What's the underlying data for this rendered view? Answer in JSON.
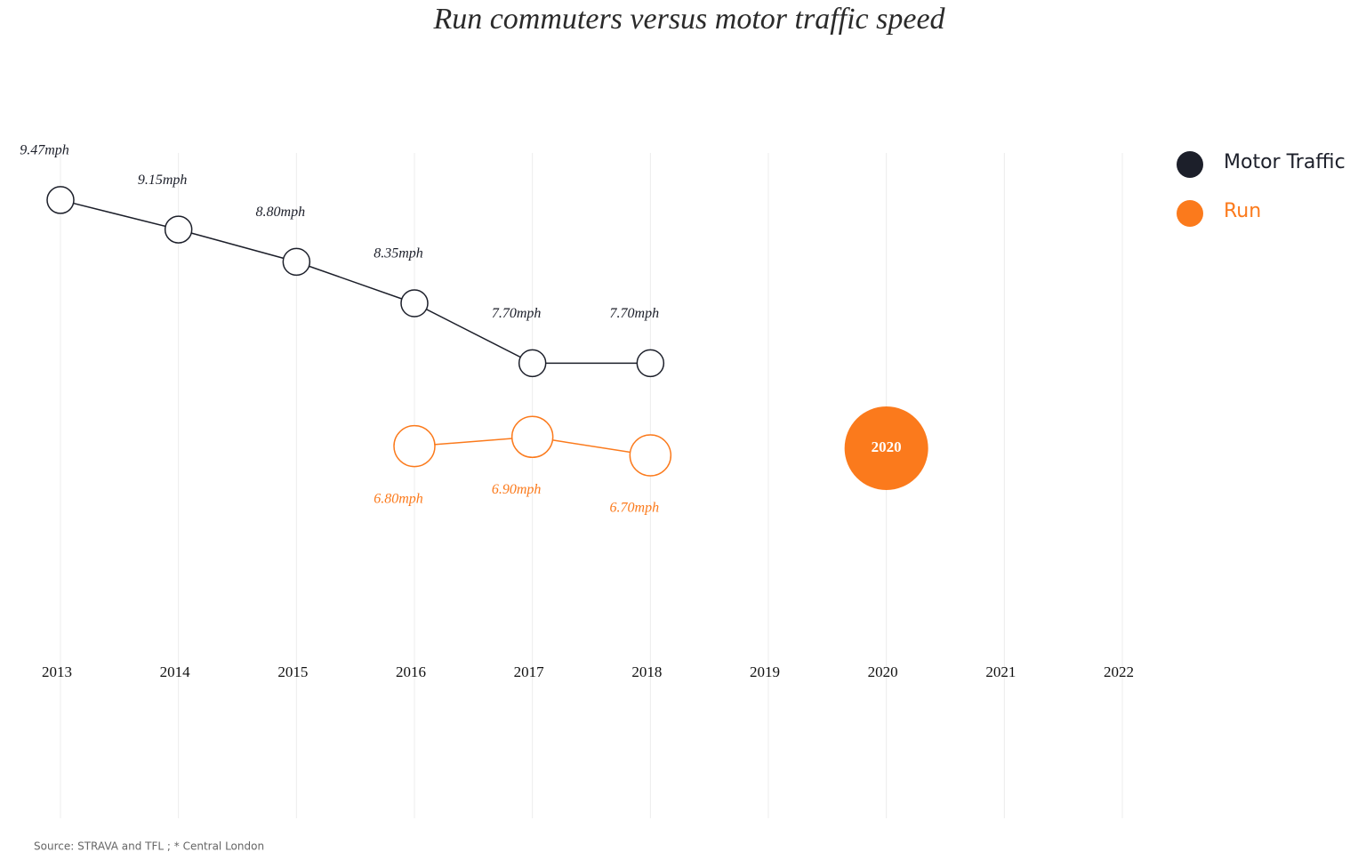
{
  "chart_data": {
    "type": "line",
    "title": "Run commuters versus motor traffic speed",
    "categories": [
      "2013",
      "2014",
      "2015",
      "2016",
      "2017",
      "2018",
      "2019",
      "2020",
      "2021",
      "2022"
    ],
    "series": [
      {
        "name": "Motor Traffic",
        "color": "#1c1f2a",
        "values": [
          9.47,
          9.15,
          8.8,
          8.35,
          7.7,
          7.7,
          null,
          null,
          null,
          null
        ],
        "value_labels": [
          "9.47mph",
          "9.15mph",
          "8.80mph",
          "8.35mph",
          "7.70mph",
          "7.70mph",
          null,
          null,
          null,
          null
        ]
      },
      {
        "name": "Run",
        "color": "#fb7a1c",
        "values": [
          null,
          null,
          null,
          6.8,
          6.9,
          6.7,
          null,
          null,
          null,
          null
        ],
        "value_labels": [
          null,
          null,
          null,
          "6.80mph",
          "6.90mph",
          "6.70mph",
          null,
          null,
          null,
          null
        ]
      }
    ],
    "ylim": [
      4.5,
      10
    ],
    "grid": true,
    "legend": "top-right",
    "annotations": [
      {
        "text": "2020",
        "x": "2020"
      }
    ],
    "source": "Source: STRAVA and TFL ; * Central London"
  }
}
